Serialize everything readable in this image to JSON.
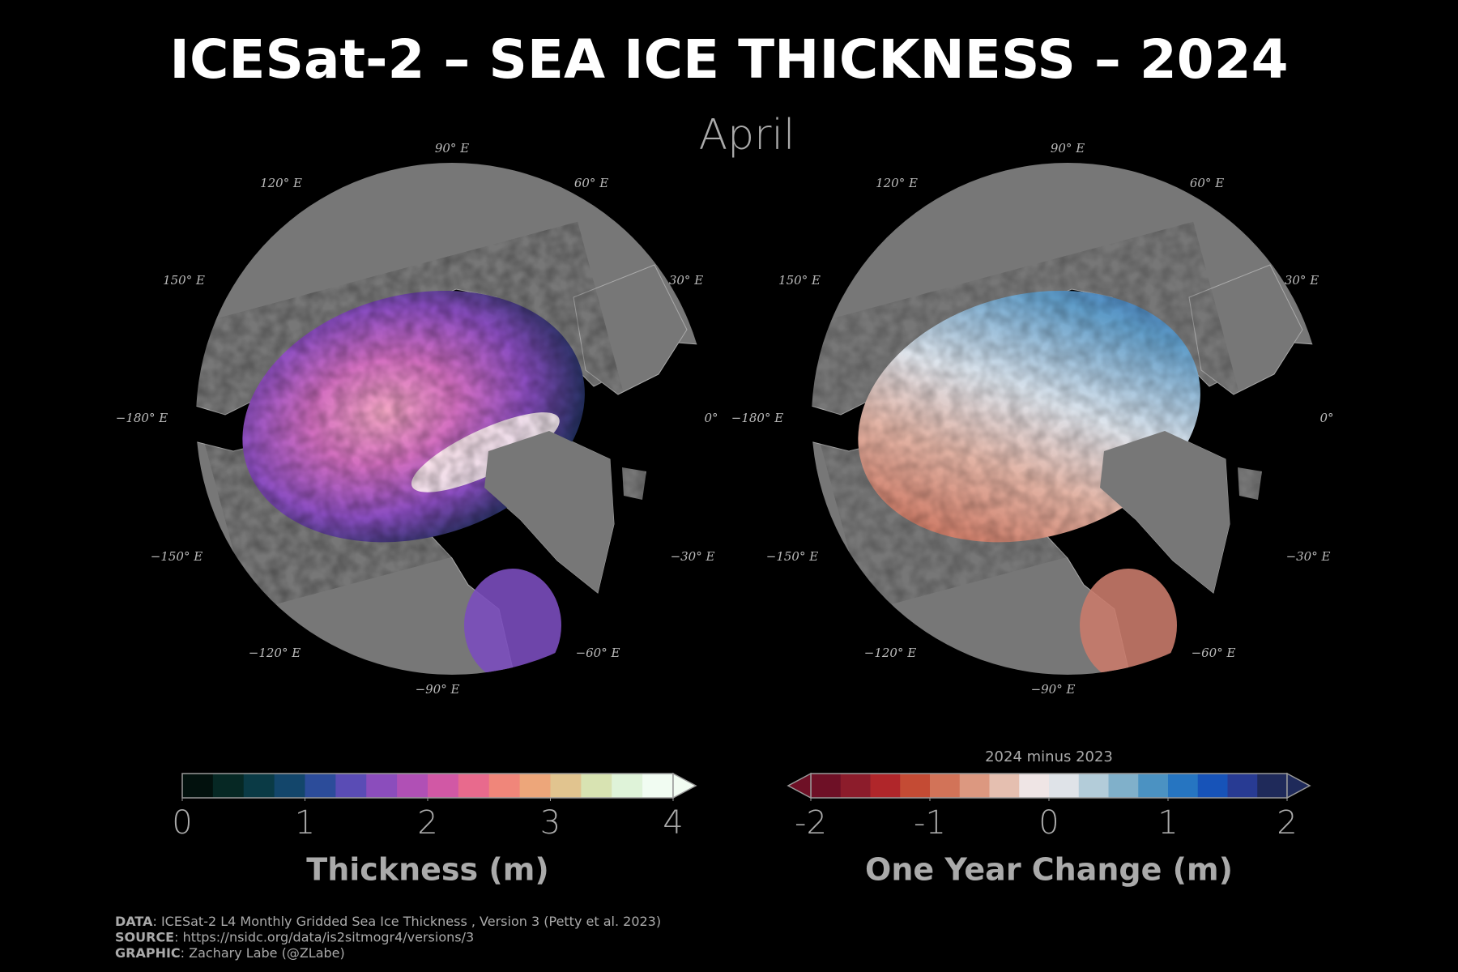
{
  "title": "ICESat-2 – SEA ICE THICKNESS – 2024",
  "subtitle": "April",
  "longitude_labels": [
    "90° E",
    "120° E",
    "60° E",
    "150° E",
    "30° E",
    "−180° E",
    "0°",
    "−150° E",
    "−30° E",
    "−120° E",
    "−60° E",
    "−90° E"
  ],
  "colorbars": [
    {
      "title": "Thickness (m)",
      "xlim": [
        0,
        4
      ],
      "xticks": [
        0,
        1,
        2,
        3,
        4
      ],
      "extend": "max",
      "colors": [
        "#02110d",
        "#062824",
        "#0a3a45",
        "#13466b",
        "#2c4c9a",
        "#5a4cb5",
        "#8b4dbc",
        "#b050b5",
        "#d158a5",
        "#e86a8d",
        "#f0867a",
        "#eda67a",
        "#e1c48f",
        "#d8e3b2",
        "#dff3d9",
        "#f1fcf2"
      ]
    },
    {
      "label": "2024 minus 2023",
      "title": "One Year Change (m)",
      "xlim": [
        -2,
        2
      ],
      "xticks": [
        -2,
        -1,
        0,
        1,
        2
      ],
      "extend": "both",
      "colors": [
        "#6e1026",
        "#8c1c2b",
        "#b0262a",
        "#c44b34",
        "#d27358",
        "#dc9880",
        "#e5bfb0",
        "#efe5e5",
        "#dfe3e8",
        "#b3ccd9",
        "#80b0ca",
        "#4b92c2",
        "#2675c1",
        "#1753b8",
        "#283b93",
        "#1f2a5a"
      ]
    }
  ],
  "credits": [
    {
      "label": "DATA",
      "text": ": ICESat-2 L4 Monthly Gridded Sea Ice Thickness , Version 3 (Petty et al. 2023)"
    },
    {
      "label": "SOURCE",
      "text": ": https://nsidc.org/data/is2sitmogr4/versions/3"
    },
    {
      "label": "GRAPHIC",
      "text": ": Zachary Labe (@ZLabe)"
    }
  ]
}
